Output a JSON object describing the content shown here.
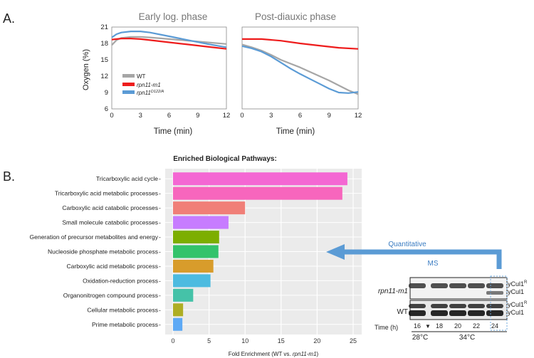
{
  "panel_a": {
    "label": "A.",
    "ylabel": "Oxygen (%)",
    "xlabel": "Time (min)",
    "legend": [
      "WT",
      "rpn11-m1",
      "rpn11"
    ],
    "legend_sup": "D122/A",
    "colors": {
      "WT": "#a6a6a6",
      "rpn11-m1": "#ee1c1c",
      "rpn11-D122A": "#5b9bd5"
    }
  },
  "panel_b": {
    "label": "B.",
    "title": "Enriched Biological Pathways:",
    "xlabel_prefix": "Fold Enrichment (WT vs. ",
    "xlabel_italic": "rpn11-m1",
    "xlabel_suffix": ")",
    "arrow_label_top": "Quantitative",
    "arrow_label_bottom": "MS",
    "blot": {
      "row_labels": [
        "rpn11-m1",
        "WT"
      ],
      "band_labels": [
        "yCul1",
        "R",
        "yCul1"
      ],
      "time_label": "Time (h)",
      "times": [
        "16",
        "18",
        "20",
        "22",
        "24"
      ],
      "arrow_glyph": "▼",
      "temps": [
        "28°C",
        "34°C"
      ]
    }
  },
  "chart_data": [
    {
      "type": "line",
      "title": "Early log. phase",
      "xlabel": "Time (min)",
      "ylabel": "Oxygen (%)",
      "xlim": [
        0,
        12
      ],
      "ylim": [
        6,
        21
      ],
      "xticks": [
        0,
        3,
        6,
        9,
        12
      ],
      "yticks": [
        6,
        9,
        12,
        15,
        18,
        21
      ],
      "series": [
        {
          "name": "WT",
          "x": [
            0,
            0.5,
            1,
            2,
            3,
            4,
            6,
            8,
            10,
            12
          ],
          "y": [
            17.7,
            18.6,
            19.0,
            19.2,
            19.2,
            19.1,
            18.8,
            18.5,
            18.2,
            17.9
          ]
        },
        {
          "name": "rpn11-m1",
          "x": [
            0,
            0.5,
            1,
            2,
            3,
            4,
            6,
            8,
            10,
            12
          ],
          "y": [
            18.7,
            18.8,
            18.9,
            18.9,
            18.8,
            18.6,
            18.2,
            17.8,
            17.4,
            17.0
          ]
        },
        {
          "name": "rpn11-D122A",
          "x": [
            0,
            0.5,
            1,
            2,
            3,
            4,
            6,
            8,
            10,
            12
          ],
          "y": [
            19.1,
            19.7,
            20.0,
            20.2,
            20.2,
            20.0,
            19.3,
            18.6,
            17.9,
            17.3
          ]
        }
      ]
    },
    {
      "type": "line",
      "title": "Post-diauxic phase",
      "xlabel": "Time (min)",
      "xlim": [
        0,
        12
      ],
      "ylim": [
        6,
        21
      ],
      "xticks": [
        0,
        3,
        6,
        9,
        12
      ],
      "series": [
        {
          "name": "WT",
          "x": [
            0,
            1,
            2,
            3,
            4,
            5,
            6,
            7,
            8,
            9,
            10,
            11,
            12
          ],
          "y": [
            17.8,
            17.3,
            16.7,
            15.9,
            15.0,
            14.3,
            13.6,
            12.8,
            12.0,
            11.2,
            10.3,
            9.4,
            8.7
          ]
        },
        {
          "name": "rpn11-m1",
          "x": [
            0,
            2,
            4,
            6,
            8,
            10,
            12
          ],
          "y": [
            18.8,
            18.8,
            18.5,
            18.0,
            17.6,
            17.2,
            17.0
          ]
        },
        {
          "name": "rpn11-D122A",
          "x": [
            0,
            1,
            2,
            3,
            4,
            5,
            6,
            7,
            8,
            9,
            10,
            11,
            12
          ],
          "y": [
            17.5,
            17.1,
            16.5,
            15.6,
            14.5,
            13.4,
            12.4,
            11.5,
            10.6,
            9.7,
            9.0,
            8.9,
            9.1
          ]
        }
      ]
    },
    {
      "type": "bar",
      "orientation": "horizontal",
      "title": "Enriched Biological Pathways:",
      "xlabel": "Fold Enrichment (WT vs. rpn11-m1)",
      "xlim": [
        0,
        25
      ],
      "xticks": [
        0,
        5,
        10,
        15,
        20,
        25
      ],
      "categories": [
        "Tricarboxylic acid cycle",
        "Tricarboxylic acid metabolic processes",
        "Carboxylic acid catabolic processes",
        "Small molecule catabolic processes",
        "Generation of precursor metabolites and energy",
        "Nucleoside phosphate metabolic process",
        "Carboxylic acid metabolic process",
        "Oxidation-reduction process",
        "Organonitrogen compound process",
        "Cellular metabolic process",
        "Prime metabolic process"
      ],
      "values": [
        24.2,
        23.5,
        10.0,
        7.7,
        6.4,
        6.3,
        5.6,
        5.2,
        2.8,
        1.4,
        1.3
      ],
      "colors": [
        "#f467d3",
        "#f766bd",
        "#f07f78",
        "#c77cff",
        "#7cae00",
        "#33c36b",
        "#d89c2b",
        "#4dbbe0",
        "#45c2a8",
        "#aeae24",
        "#5da9f5"
      ],
      "grid": true
    }
  ]
}
